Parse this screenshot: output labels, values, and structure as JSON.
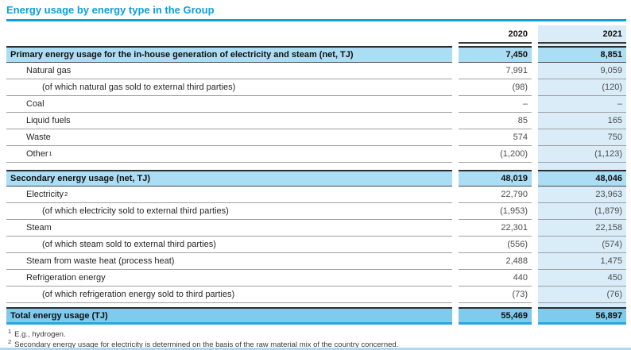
{
  "title": "Energy usage by energy type in the Group",
  "columns": {
    "col2020": "2020",
    "col2021": "2021"
  },
  "sections": [
    {
      "header": {
        "label": "Primary energy usage for the in-house generation of electricity and steam (net, TJ)",
        "v2020": "7,450",
        "v2021": "8,851"
      },
      "rows": [
        {
          "label": "Natural gas",
          "indent": 1,
          "v2020": "7,991",
          "v2021": "9,059"
        },
        {
          "label": "(of which natural gas sold to external third parties)",
          "indent": 2,
          "v2020": "(98)",
          "v2021": "(120)"
        },
        {
          "label": "Coal",
          "indent": 1,
          "v2020": "–",
          "v2021": "–"
        },
        {
          "label": "Liquid fuels",
          "indent": 1,
          "v2020": "85",
          "v2021": "165"
        },
        {
          "label": "Waste",
          "indent": 1,
          "v2020": "574",
          "v2021": "750"
        },
        {
          "label": "Other",
          "sup": "1",
          "indent": 1,
          "v2020": "(1,200)",
          "v2021": "(1,123)"
        }
      ]
    },
    {
      "header": {
        "label": "Secondary energy usage (net, TJ)",
        "v2020": "48,019",
        "v2021": "48,046"
      },
      "rows": [
        {
          "label": "Electricity",
          "sup": "2",
          "indent": 1,
          "v2020": "22,790",
          "v2021": "23,963"
        },
        {
          "label": "(of which electricity sold to external third parties)",
          "indent": 2,
          "v2020": "(1,953)",
          "v2021": "(1,879)"
        },
        {
          "label": "Steam",
          "indent": 1,
          "v2020": "22,301",
          "v2021": "22,158"
        },
        {
          "label": "(of which steam sold to external third parties)",
          "indent": 2,
          "v2020": "(556)",
          "v2021": "(574)"
        },
        {
          "label": "Steam from waste heat (process heat)",
          "indent": 1,
          "v2020": "2,488",
          "v2021": "1,475"
        },
        {
          "label": "Refrigeration energy",
          "indent": 1,
          "v2020": "440",
          "v2021": "450"
        },
        {
          "label": "(of which refrigeration energy sold to third parties)",
          "indent": 2,
          "v2020": "(73)",
          "v2021": "(76)"
        }
      ]
    }
  ],
  "total": {
    "label": "Total energy usage (TJ)",
    "v2020": "55,469",
    "v2021": "56,897"
  },
  "footnotes": [
    {
      "sup": "1",
      "text": "E.g., hydrogen."
    },
    {
      "sup": "2",
      "text": "Secondary energy usage for electricity is determined on the basis of the raw material mix of the country concerned."
    }
  ],
  "colors": {
    "accent": "#0c9edd",
    "section_bg": "#abddf4",
    "band_bg": "#d9ecf8",
    "total_bg": "#7ecbee",
    "total_border": "#29a4dd",
    "bottom_rule": "#b0d8ee"
  }
}
